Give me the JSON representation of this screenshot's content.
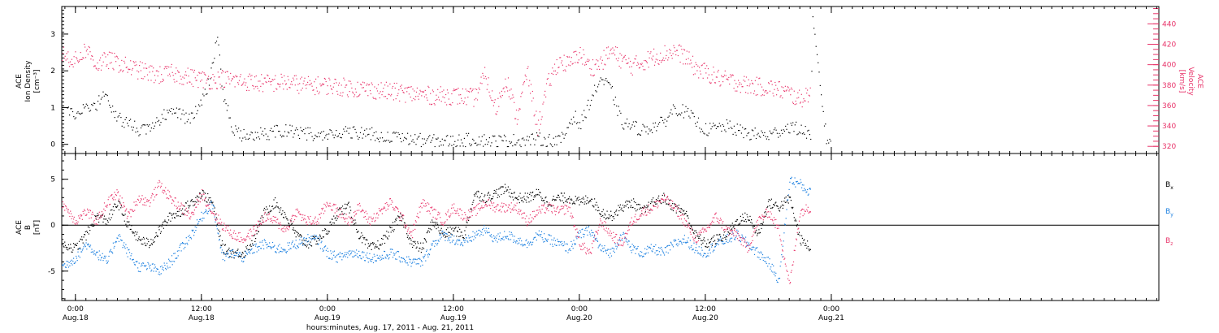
{
  "colors": {
    "ink": "#000000",
    "pink": "#e8346a",
    "blue": "#1a7fe0"
  },
  "x_axis": {
    "title": "hours:minutes, Aug. 17, 2011 - Aug. 21, 2011",
    "range_hours": [
      -1.3,
      103.2
    ],
    "ticks": [
      {
        "hour": 0,
        "time": "0:00",
        "date": "Aug.18"
      },
      {
        "hour": 12,
        "time": "12:00",
        "date": "Aug.18"
      },
      {
        "hour": 24,
        "time": "0:00",
        "date": "Aug.19"
      },
      {
        "hour": 36,
        "time": "12:00",
        "date": "Aug.19"
      },
      {
        "hour": 48,
        "time": "0:00",
        "date": "Aug.20"
      },
      {
        "hour": 60,
        "time": "12:00",
        "date": "Aug.20"
      },
      {
        "hour": 72,
        "time": "0:00",
        "date": "Aug.21"
      }
    ]
  },
  "chart_data": [
    {
      "type": "scatter",
      "panel": "top",
      "ylabel_left": [
        "ACE",
        "Ion Density",
        "[cm⁻³]"
      ],
      "ylabel_right": [
        "ACE",
        "Velocity",
        "[km/s]"
      ],
      "ylim_left": [
        -0.25,
        3.75
      ],
      "yticks_left": [
        "0",
        "1",
        "2",
        "3"
      ],
      "ylim_right": [
        313,
        457
      ],
      "yticks_right": [
        "320",
        "340",
        "360",
        "380",
        "400",
        "420",
        "440"
      ],
      "series": [
        {
          "color": "ink",
          "axis": "left",
          "x": [
            -0.8,
            0,
            1,
            2,
            2.5,
            3,
            4,
            5,
            6,
            7,
            8,
            9,
            10,
            11,
            11.5,
            12,
            12.5,
            13,
            13.5,
            14,
            15,
            16,
            18,
            20,
            22,
            24,
            26,
            28,
            30,
            32,
            34,
            36,
            38,
            40,
            42,
            44,
            46,
            46.5,
            47,
            47.5,
            48,
            49,
            50,
            51,
            52,
            53,
            54,
            55,
            56,
            57,
            58,
            60,
            62,
            64,
            66,
            68,
            70,
            70.2,
            71.5,
            72
          ],
          "y": [
            1.0,
            0.8,
            1.1,
            1.0,
            1.4,
            1.2,
            0.7,
            0.6,
            0.4,
            0.5,
            0.7,
            0.9,
            0.8,
            0.7,
            0.9,
            1.2,
            1.5,
            2.2,
            3.0,
            1.4,
            0.4,
            0.25,
            0.3,
            0.4,
            0.3,
            0.25,
            0.35,
            0.3,
            0.2,
            0.15,
            0.1,
            0.1,
            0.15,
            0.1,
            0.12,
            0.15,
            0.1,
            0.2,
            0.6,
            0.8,
            0.5,
            1.2,
            1.8,
            1.5,
            0.6,
            0.5,
            0.4,
            0.5,
            0.6,
            1.0,
            0.9,
            0.4,
            0.5,
            0.3,
            0.25,
            0.5,
            0.3,
            3.35,
            0.15,
            0.1
          ]
        },
        {
          "color": "pink",
          "axis": "right",
          "x": [
            -1.3,
            0,
            1,
            1.5,
            2,
            3,
            4,
            5,
            6,
            7,
            8,
            9,
            10,
            11,
            12,
            13,
            14,
            15,
            16,
            18,
            20,
            22,
            24,
            26,
            28,
            30,
            32,
            34,
            36,
            38,
            39,
            40,
            41,
            42,
            43,
            44,
            45,
            46,
            47,
            48,
            49,
            50,
            51,
            52,
            53,
            54,
            55,
            56,
            57,
            58,
            59,
            60,
            61,
            62,
            63,
            64,
            65,
            66,
            67,
            68,
            69,
            70
          ],
          "y": [
            411,
            404,
            416,
            408,
            400,
            405,
            402,
            398,
            395,
            392,
            390,
            392,
            390,
            388,
            386,
            385,
            387,
            385,
            384,
            382,
            383,
            380,
            380,
            378,
            376,
            374,
            372,
            370,
            370,
            368,
            390,
            356,
            388,
            348,
            394,
            338,
            382,
            404,
            400,
            412,
            397,
            402,
            414,
            405,
            399,
            403,
            408,
            411,
            414,
            409,
            397,
            393,
            388,
            385,
            383,
            380,
            379,
            378,
            376,
            372,
            366,
            375
          ]
        }
      ]
    },
    {
      "type": "scatter",
      "panel": "bottom",
      "ylabel": [
        "ACE",
        "B",
        "[nT]"
      ],
      "ylim": [
        -8.2,
        7.8
      ],
      "yticks": [
        "-5",
        "0",
        "5"
      ],
      "zero_line": true,
      "series": [
        {
          "name": "B",
          "subscript": "x",
          "color": "ink",
          "x": [
            -1.3,
            0,
            1,
            2,
            3,
            4,
            5,
            6,
            7,
            8,
            9,
            10,
            11,
            12,
            13,
            14,
            15,
            16,
            17,
            18,
            19,
            20,
            21,
            22,
            23,
            24,
            25,
            26,
            27,
            28,
            29,
            30,
            31,
            32,
            33,
            34,
            35,
            36,
            37,
            38,
            39,
            40,
            41,
            42,
            43,
            44,
            45,
            46,
            47,
            48,
            49,
            50,
            51,
            52,
            53,
            54,
            55,
            56,
            57,
            58,
            59,
            60,
            61,
            62,
            63,
            64,
            65,
            66,
            67,
            68,
            69,
            70
          ],
          "y": [
            -2.0,
            -2.5,
            -1.0,
            1.0,
            0.5,
            2.5,
            0.0,
            -1.5,
            -2.0,
            -0.5,
            1.0,
            1.5,
            2.5,
            3.5,
            2.5,
            -2.5,
            -3.0,
            -3.0,
            -1.5,
            1.5,
            2.5,
            1.0,
            -1.0,
            -2.0,
            -1.5,
            -0.5,
            1.5,
            2.0,
            -1.0,
            -2.5,
            -2.0,
            -0.5,
            1.0,
            -2.0,
            -2.5,
            0.5,
            -1.0,
            -0.5,
            -1.0,
            3.5,
            3.0,
            3.5,
            4.0,
            3.0,
            3.0,
            3.5,
            2.5,
            3.0,
            3.0,
            2.5,
            3.0,
            1.5,
            1.0,
            2.0,
            2.5,
            1.5,
            2.5,
            3.0,
            2.0,
            1.5,
            -1.0,
            -2.0,
            -1.5,
            -1.0,
            0.5,
            1.0,
            -1.0,
            2.5,
            2.0,
            3.0,
            -1.5,
            -2.5
          ]
        },
        {
          "name": "B",
          "subscript": "y",
          "color": "blue",
          "x": [
            -1.3,
            0,
            1,
            2,
            3,
            4,
            5,
            6,
            7,
            8,
            9,
            10,
            11,
            12,
            13,
            14,
            15,
            16,
            17,
            18,
            19,
            20,
            21,
            22,
            23,
            24,
            25,
            26,
            27,
            28,
            29,
            30,
            31,
            32,
            33,
            34,
            35,
            36,
            37,
            38,
            39,
            40,
            41,
            42,
            43,
            44,
            45,
            46,
            47,
            48,
            49,
            50,
            51,
            52,
            53,
            54,
            55,
            56,
            57,
            58,
            59,
            60,
            61,
            62,
            63,
            64,
            65,
            66,
            67,
            68,
            69,
            70
          ],
          "y": [
            -4.5,
            -3.5,
            -2.0,
            -3.0,
            -4.0,
            -1.0,
            -3.0,
            -4.5,
            -4.5,
            -5.0,
            -4.0,
            -2.5,
            -1.0,
            1.0,
            2.5,
            -3.5,
            -3.0,
            -3.5,
            -2.5,
            -2.0,
            -2.5,
            -2.5,
            -2.0,
            -1.5,
            -1.5,
            -3.0,
            -3.5,
            -3.0,
            -3.0,
            -3.5,
            -3.5,
            -3.0,
            -3.5,
            -4.0,
            -4.0,
            -2.0,
            -1.0,
            -1.5,
            -2.0,
            -1.0,
            -0.5,
            -1.5,
            -1.0,
            -1.5,
            -2.0,
            -1.0,
            -1.5,
            -2.0,
            -2.5,
            -1.0,
            -0.5,
            -2.5,
            -3.0,
            -1.0,
            -2.5,
            -3.0,
            -2.5,
            -3.0,
            -2.0,
            -1.5,
            -2.5,
            -3.0,
            -2.0,
            -1.5,
            -1.0,
            -2.0,
            -3.0,
            -4.0,
            -6.0,
            5.0,
            4.5,
            3.5
          ]
        },
        {
          "name": "B",
          "subscript": "z",
          "color": "pink",
          "x": [
            -1.3,
            0,
            1,
            2,
            3,
            4,
            5,
            6,
            7,
            8,
            9,
            10,
            11,
            12,
            13,
            14,
            15,
            16,
            17,
            18,
            19,
            20,
            21,
            22,
            23,
            24,
            25,
            26,
            27,
            28,
            29,
            30,
            31,
            32,
            33,
            34,
            35,
            36,
            37,
            38,
            39,
            40,
            41,
            42,
            43,
            44,
            45,
            46,
            47,
            48,
            49,
            50,
            51,
            52,
            53,
            54,
            55,
            56,
            57,
            58,
            59,
            60,
            61,
            62,
            63,
            64,
            65,
            66,
            67,
            68,
            69,
            70
          ],
          "y": [
            2.5,
            0.5,
            1.5,
            0.5,
            2.5,
            3.5,
            1.0,
            3.0,
            2.5,
            4.5,
            3.0,
            2.0,
            1.0,
            3.5,
            1.5,
            0.0,
            -1.0,
            -1.5,
            -0.5,
            1.0,
            0.5,
            -0.5,
            1.5,
            0.5,
            0.5,
            2.5,
            1.5,
            0.5,
            2.0,
            0.5,
            1.5,
            2.5,
            1.0,
            -1.0,
            2.5,
            1.5,
            0.5,
            2.0,
            1.0,
            1.5,
            2.5,
            2.0,
            2.0,
            2.0,
            0.5,
            1.5,
            2.0,
            1.5,
            2.0,
            -2.0,
            -3.0,
            0.5,
            -1.0,
            -2.0,
            0.5,
            1.5,
            2.0,
            3.0,
            2.0,
            0.5,
            -1.5,
            -0.5,
            1.0,
            -0.5,
            -1.0,
            -2.5,
            0.5,
            1.5,
            -0.5,
            -6.5,
            1.5,
            2.0
          ]
        }
      ]
    }
  ]
}
